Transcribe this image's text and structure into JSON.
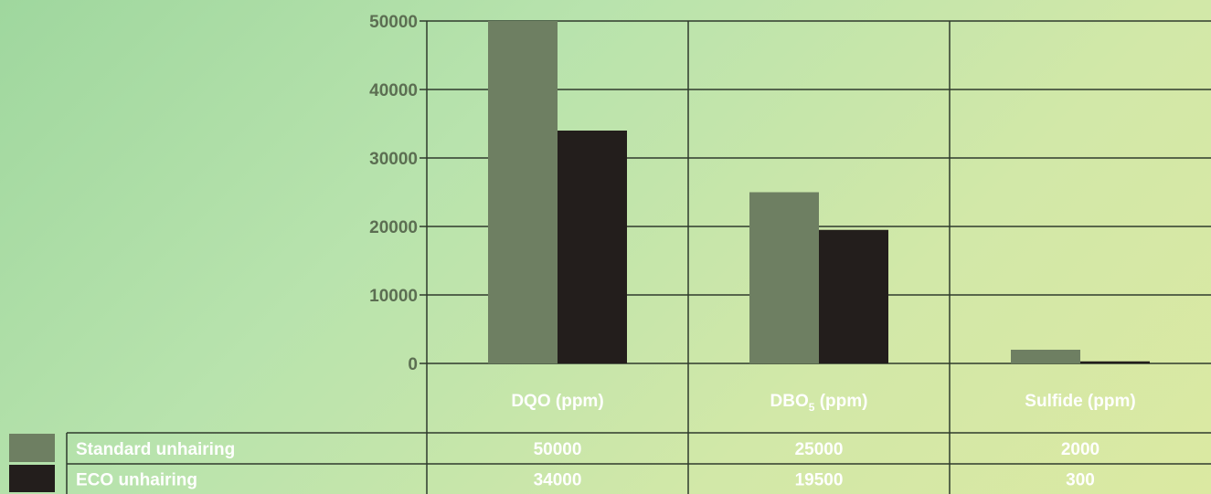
{
  "chart_data": {
    "type": "bar",
    "categories": [
      "DQO (ppm)",
      "DBO5 (ppm)",
      "Sulfide (ppm)"
    ],
    "category_labels": [
      {
        "main": "DQO (ppm)",
        "sub": "",
        "rest": ""
      },
      {
        "main": "DBO",
        "sub": "5",
        "rest": " (ppm)"
      },
      {
        "main": "Sulfide (ppm)",
        "sub": "",
        "rest": ""
      }
    ],
    "series": [
      {
        "name": "Standard unhairing",
        "values": [
          50000,
          25000,
          2000
        ],
        "color": "#6e7f62"
      },
      {
        "name": "ECO unhairing",
        "values": [
          34000,
          19500,
          300
        ],
        "color": "#231e1c"
      }
    ],
    "ylim": [
      0,
      50000
    ],
    "yticks": [
      0,
      10000,
      20000,
      30000,
      40000,
      50000
    ],
    "grid": true,
    "legend": "bottom-table",
    "title": "",
    "xlabel": "",
    "ylabel": ""
  }
}
